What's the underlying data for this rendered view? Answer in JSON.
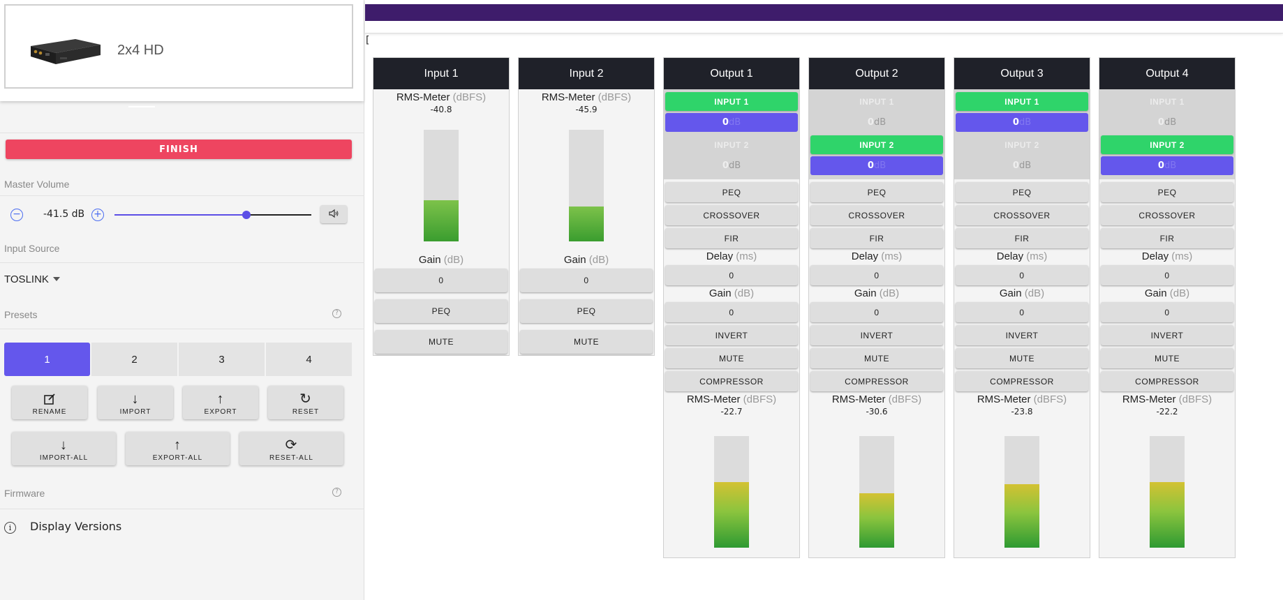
{
  "device": {
    "name": "2x4 HD"
  },
  "sidebar": {
    "finish_label": "FINISH",
    "master_volume": {
      "label": "Master Volume",
      "value": "-41.5 dB",
      "minus": "−",
      "plus": "+",
      "fraction": 0.67
    },
    "input_source": {
      "label": "Input Source",
      "selected": "TOSLINK"
    },
    "presets": {
      "label": "Presets",
      "help": "?",
      "tabs": [
        "1",
        "2",
        "3",
        "4"
      ],
      "active": 0
    },
    "actions": [
      {
        "label": "RENAME",
        "icon": "edit-icon"
      },
      {
        "label": "IMPORT",
        "icon": "arrow-down-icon"
      },
      {
        "label": "EXPORT",
        "icon": "arrow-up-icon"
      },
      {
        "label": "RESET",
        "icon": "refresh-icon"
      }
    ],
    "global_actions": [
      {
        "label": "IMPORT-ALL",
        "icon": "arrow-down-icon"
      },
      {
        "label": "EXPORT-ALL",
        "icon": "arrow-up-icon"
      },
      {
        "label": "RESET-ALL",
        "icon": "reset-all-icon"
      }
    ],
    "firmware": {
      "label": "Firmware",
      "help": "?",
      "display_versions": "Display Versions"
    }
  },
  "main": {
    "bracket": "[",
    "inputs": [
      {
        "title": "Input 1",
        "meter_label": "RMS-Meter",
        "meter_unit": "(dBFS)",
        "meter_value": "-40.8",
        "level": 0.37,
        "gain_label": "Gain",
        "gain_unit": "(dB)",
        "gain_value": "0",
        "peq": "PEQ",
        "mute": "MUTE"
      },
      {
        "title": "Input 2",
        "meter_label": "RMS-Meter",
        "meter_unit": "(dBFS)",
        "meter_value": "-45.9",
        "level": 0.31,
        "gain_label": "Gain",
        "gain_unit": "(dB)",
        "gain_value": "0",
        "peq": "PEQ",
        "mute": "MUTE"
      }
    ],
    "outputs": [
      {
        "title": "Output 1",
        "route1": {
          "label": "INPUT 1",
          "on": true,
          "gain": "0",
          "unit": "dB"
        },
        "route2": {
          "label": "INPUT 2",
          "on": false,
          "gain": "0",
          "unit": "dB"
        },
        "peq": "PEQ",
        "crossover": "CROSSOVER",
        "fir": "FIR",
        "delay_label": "Delay",
        "delay_unit": "(ms)",
        "delay_value": "0",
        "gain_label": "Gain",
        "gain_unit": "(dB)",
        "gain_value": "0",
        "invert": "INVERT",
        "mute": "MUTE",
        "compressor": "COMPRESSOR",
        "meter_label": "RMS-Meter",
        "meter_unit": "(dBFS)",
        "meter_value": "-22.7",
        "level": 0.59
      },
      {
        "title": "Output 2",
        "route1": {
          "label": "INPUT 1",
          "on": false,
          "gain": "0",
          "unit": "dB"
        },
        "route2": {
          "label": "INPUT 2",
          "on": true,
          "gain": "0",
          "unit": "dB"
        },
        "peq": "PEQ",
        "crossover": "CROSSOVER",
        "fir": "FIR",
        "delay_label": "Delay",
        "delay_unit": "(ms)",
        "delay_value": "0",
        "gain_label": "Gain",
        "gain_unit": "(dB)",
        "gain_value": "0",
        "invert": "INVERT",
        "mute": "MUTE",
        "compressor": "COMPRESSOR",
        "meter_label": "RMS-Meter",
        "meter_unit": "(dBFS)",
        "meter_value": "-30.6",
        "level": 0.49
      },
      {
        "title": "Output 3",
        "route1": {
          "label": "INPUT 1",
          "on": true,
          "gain": "0",
          "unit": "dB"
        },
        "route2": {
          "label": "INPUT 2",
          "on": false,
          "gain": "0",
          "unit": "dB"
        },
        "peq": "PEQ",
        "crossover": "CROSSOVER",
        "fir": "FIR",
        "delay_label": "Delay",
        "delay_unit": "(ms)",
        "delay_value": "0",
        "gain_label": "Gain",
        "gain_unit": "(dB)",
        "gain_value": "0",
        "invert": "INVERT",
        "mute": "MUTE",
        "compressor": "COMPRESSOR",
        "meter_label": "RMS-Meter",
        "meter_unit": "(dBFS)",
        "meter_value": "-23.8",
        "level": 0.57
      },
      {
        "title": "Output 4",
        "route1": {
          "label": "INPUT 1",
          "on": false,
          "gain": "0",
          "unit": "dB"
        },
        "route2": {
          "label": "INPUT 2",
          "on": true,
          "gain": "0",
          "unit": "dB"
        },
        "peq": "PEQ",
        "crossover": "CROSSOVER",
        "fir": "FIR",
        "delay_label": "Delay",
        "delay_unit": "(ms)",
        "delay_value": "0",
        "gain_label": "Gain",
        "gain_unit": "(dB)",
        "gain_value": "0",
        "invert": "INVERT",
        "mute": "MUTE",
        "compressor": "COMPRESSOR",
        "meter_label": "RMS-Meter",
        "meter_unit": "(dBFS)",
        "meter_value": "-22.2",
        "level": 0.59
      }
    ]
  },
  "colors": {
    "accent": "#6457ec",
    "finish": "#ee4560",
    "route_on": "#2fd46a",
    "header": "#1f2129",
    "topbar": "#3e1c6b"
  }
}
